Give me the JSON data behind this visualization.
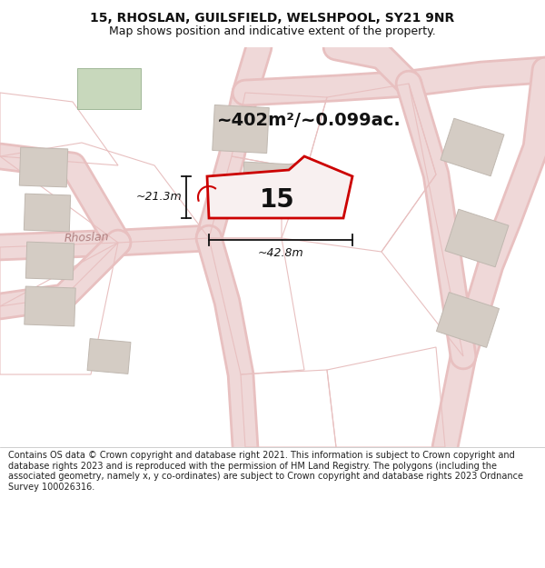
{
  "title_line1": "15, RHOSLAN, GUILSFIELD, WELSHPOOL, SY21 9NR",
  "title_line2": "Map shows position and indicative extent of the property.",
  "area_text": "~402m²/~0.099ac.",
  "property_number": "15",
  "dim_horizontal": "~42.8m",
  "dim_vertical": "~21.3m",
  "road_label": "Rhoslan",
  "footer_text": "Contains OS data © Crown copyright and database right 2021. This information is subject to Crown copyright and database rights 2023 and is reproduced with the permission of HM Land Registry. The polygons (including the associated geometry, namely x, y co-ordinates) are subject to Crown copyright and database rights 2023 Ordnance Survey 100026316.",
  "bg_color": "#f2ece4",
  "road_color": "#e8c0c0",
  "road_darker": "#d4a0a0",
  "building_fill": "#d4ccc4",
  "building_stroke": "#c0b8b0",
  "plot15_fill": "#f8f0f0",
  "plot15_stroke": "#cc0000",
  "green_fill": "#c8d8bc",
  "footer_bg": "#ffffff",
  "title_fontsize": 10,
  "subtitle_fontsize": 9,
  "footer_fontsize": 7,
  "area_fontsize": 14,
  "label_fontsize": 20,
  "dim_fontsize": 9
}
